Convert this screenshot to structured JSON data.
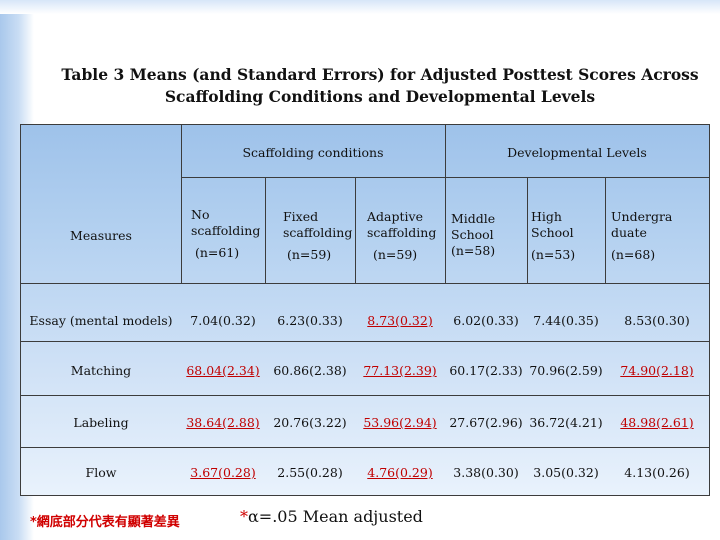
{
  "title": {
    "line1": "Table 3 Means (and Standard Errors) for Adjusted Posttest Scores Across",
    "line2": "Scaffolding Conditions and Developmental Levels"
  },
  "table": {
    "group_headers": {
      "scaffolding": "Scaffolding conditions",
      "developmental": "Developmental Levels"
    },
    "measures_header": "Measures",
    "columns": [
      {
        "line1": "No",
        "line2": "scaffolding",
        "n": "(n=61)"
      },
      {
        "line1": "Fixed",
        "line2": "scaffolding",
        "n": "(n=59)"
      },
      {
        "line1": "Adaptive",
        "line2": "scaffolding",
        "n": "(n=59)"
      },
      {
        "line1": "Middle",
        "line2": "School",
        "n": "(n=58)"
      },
      {
        "line1": "High",
        "line2": "School",
        "n": "(n=53)"
      },
      {
        "line1": "Undergra",
        "line2": "duate",
        "n": "(n=68)"
      }
    ],
    "rows": [
      {
        "measure": "Essay (mental models)",
        "values": [
          "7.04(0.32)",
          "6.23(0.33)",
          "8.73(0.32)",
          "6.02(0.33)",
          "7.44(0.35)",
          "8.53(0.30)"
        ],
        "sig": [
          false,
          false,
          true,
          false,
          false,
          false
        ]
      },
      {
        "measure": "Matching",
        "values": [
          "68.04(2.34)",
          "60.86(2.38)",
          "77.13(2.39)",
          "60.17(2.33)",
          "70.96(2.59)",
          "74.90(2.18)"
        ],
        "sig": [
          true,
          false,
          true,
          false,
          false,
          true
        ]
      },
      {
        "measure": "Labeling",
        "values": [
          "38.64(2.88)",
          "20.76(3.22)",
          "53.96(2.94)",
          "27.67(2.96)",
          "36.72(4.21)",
          "48.98(2.61)"
        ],
        "sig": [
          true,
          false,
          true,
          false,
          false,
          true
        ]
      },
      {
        "measure": "Flow",
        "values": [
          "3.67(0.28)",
          "2.55(0.28)",
          "4.76(0.29)",
          "3.38(0.30)",
          "3.05(0.32)",
          "4.13(0.26)"
        ],
        "sig": [
          true,
          false,
          true,
          false,
          false,
          false
        ]
      }
    ]
  },
  "footnotes": {
    "left": "*網底部分代表有顯著差異",
    "right_star": "*",
    "right_text": "α=.05 Mean adjusted"
  },
  "colors": {
    "significant": "#c00000",
    "table_bg_top": "#9ec2ea",
    "side_bar": "#a9c8ec"
  }
}
